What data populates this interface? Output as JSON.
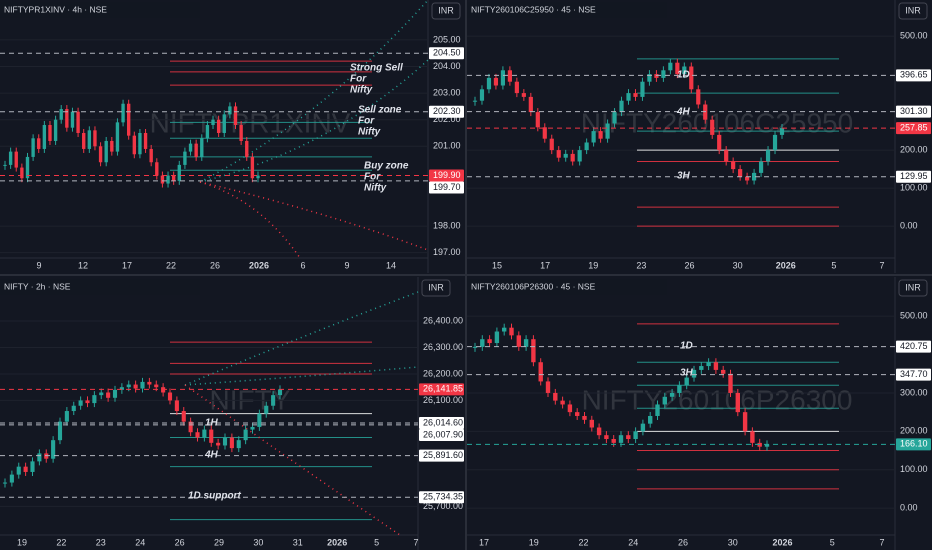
{
  "chart_data": [
    {
      "type": "candlestick",
      "title": "NIFTYPR1XINV · 4h · NSE",
      "currency": "INR",
      "watermark": "NIFTYPR1XINV",
      "ylim": [
        196.8,
        206.5
      ],
      "yticks": [
        {
          "value": 205,
          "label": "205.00"
        },
        {
          "value": 204,
          "label": "204.00"
        },
        {
          "value": 203,
          "label": "203.00"
        },
        {
          "value": 202,
          "label": "202.00"
        },
        {
          "value": 201,
          "label": "201.00"
        },
        {
          "value": 198,
          "label": "198.00"
        },
        {
          "value": 197,
          "label": "197.00"
        }
      ],
      "xticks": [
        "9",
        "12",
        "17",
        "22",
        "26",
        "2026",
        "6",
        "9",
        "14"
      ],
      "closes": [
        200.3,
        200.8,
        200.2,
        199.8,
        200.6,
        201.3,
        200.9,
        201.8,
        201.2,
        202.0,
        202.4,
        201.7,
        202.3,
        201.5,
        200.9,
        201.6,
        201.0,
        200.4,
        201.2,
        200.8,
        201.9,
        202.6,
        201.4,
        200.7,
        201.5,
        200.9,
        200.4,
        199.9,
        199.6,
        199.9,
        199.7,
        200.3,
        200.8,
        201.1,
        200.6,
        201.3,
        201.8,
        202.0,
        201.5,
        202.2,
        202.5,
        201.8,
        201.2,
        200.6,
        199.8,
        199.9
      ],
      "levels": [
        {
          "value": 204.2,
          "color": "#f23645"
        },
        {
          "value": 203.8,
          "color": "#f23645"
        },
        {
          "value": 203.3,
          "color": "#f23645"
        },
        {
          "value": 201.9,
          "color": "#26a69a"
        },
        {
          "value": 201.3,
          "color": "#26a69a"
        },
        {
          "value": 200.6,
          "color": "#26a69a"
        },
        {
          "value": 200.1,
          "color": "#26a69a"
        }
      ],
      "price_tags": [
        {
          "value": 204.5,
          "label": "204.50",
          "style": "white"
        },
        {
          "value": 202.3,
          "label": "202.30",
          "style": "white"
        },
        {
          "value": 199.9,
          "label": "199.90",
          "style": "red"
        },
        {
          "value": 199.7,
          "label": "199.70",
          "style": "white"
        }
      ],
      "annotations": [
        [
          "Strong Sell",
          "For",
          "Nifty"
        ],
        [
          "Sell zone",
          "For",
          "Nifty"
        ],
        [
          "Buy zone",
          "For",
          "Nifty"
        ]
      ]
    },
    {
      "type": "candlestick",
      "title": "NIFTY260106C25950 · 45 · NSE",
      "currency": "INR",
      "watermark": "NIFTY260106C25950",
      "ylim": [
        -84,
        595
      ],
      "yticks": [
        {
          "value": 500,
          "label": "500.00"
        },
        {
          "value": 200,
          "label": "200.00"
        },
        {
          "value": 100,
          "label": "100.00"
        },
        {
          "value": 0,
          "label": "0.00"
        }
      ],
      "xticks": [
        "15",
        "17",
        "19",
        "23",
        "26",
        "30",
        "2026",
        "5",
        "7"
      ],
      "closes": [
        330,
        360,
        390,
        370,
        410,
        380,
        350,
        340,
        300,
        260,
        230,
        200,
        180,
        190,
        170,
        200,
        220,
        250,
        230,
        270,
        300,
        330,
        350,
        340,
        380,
        400,
        390,
        410,
        430,
        400,
        420,
        360,
        320,
        280,
        240,
        200,
        170,
        150,
        130,
        120,
        140,
        170,
        200,
        240,
        258
      ],
      "levels": [
        {
          "value": 440,
          "color": "#26a69a"
        },
        {
          "value": 350,
          "color": "#26a69a"
        },
        {
          "value": 250,
          "color": "#26a69a"
        },
        {
          "value": 200,
          "color": "#ffffff"
        },
        {
          "value": 170,
          "color": "#f23645"
        },
        {
          "value": 50,
          "color": "#f23645"
        },
        {
          "value": 0,
          "color": "#f23645"
        }
      ],
      "price_tags": [
        {
          "value": 396.65,
          "label": "396.65",
          "style": "white"
        },
        {
          "value": 301.3,
          "label": "301.30",
          "style": "white"
        },
        {
          "value": 257.85,
          "label": "257.85",
          "style": "red"
        },
        {
          "value": 129.95,
          "label": "129.95",
          "style": "white"
        }
      ],
      "annotations": [
        [
          "1D"
        ],
        [
          "4H"
        ],
        [
          "3H"
        ]
      ]
    },
    {
      "type": "candlestick",
      "title": "NIFTY · 2h · NSE",
      "currency": "INR",
      "watermark": "NIFTY",
      "ylim": [
        25592,
        26566
      ],
      "yticks": [
        {
          "value": 26400,
          "label": "26,400.00"
        },
        {
          "value": 26300,
          "label": "26,300.00"
        },
        {
          "value": 26200,
          "label": "26,200.00"
        },
        {
          "value": 26100,
          "label": "26,100.00"
        },
        {
          "value": 25700,
          "label": "25,700.00"
        }
      ],
      "xticks": [
        "19",
        "22",
        "23",
        "24",
        "26",
        "29",
        "30",
        "31",
        "2026",
        "5",
        "7"
      ],
      "closes": [
        25790,
        25820,
        25850,
        25830,
        25870,
        25900,
        25880,
        25950,
        26020,
        26060,
        26080,
        26100,
        26090,
        26120,
        26130,
        26110,
        26140,
        26150,
        26160,
        26145,
        26170,
        26160,
        26150,
        26130,
        26100,
        26060,
        26020,
        25980,
        25960,
        25990,
        25940,
        25930,
        25960,
        25920,
        25950,
        25990,
        26000,
        26050,
        26080,
        26120,
        26141.85
      ],
      "levels": [
        {
          "value": 26320,
          "color": "#f23645"
        },
        {
          "value": 26240,
          "color": "#f23645"
        },
        {
          "value": 26200,
          "color": "#f23645"
        },
        {
          "value": 26050,
          "color": "#ffffff"
        },
        {
          "value": 25960,
          "color": "#26a69a"
        },
        {
          "value": 25850,
          "color": "#26a69a"
        },
        {
          "value": 25650,
          "color": "#26a69a"
        }
      ],
      "price_tags": [
        {
          "value": 26141.85,
          "label": "26,141.85",
          "style": "red"
        },
        {
          "value": 26014.6,
          "label": "26,014.60",
          "style": "white"
        },
        {
          "value": 26007.9,
          "label": "26,007.90",
          "style": "white"
        },
        {
          "value": 25891.6,
          "label": "25,891.60",
          "style": "white"
        },
        {
          "value": 25734.35,
          "label": "25,734.35",
          "style": "white"
        }
      ],
      "annotations": [
        [
          "1H"
        ],
        [
          "4H"
        ],
        [
          "1D support"
        ]
      ]
    },
    {
      "type": "candlestick",
      "title": "NIFTY260106P26300 · 45 · NSE",
      "currency": "INR",
      "watermark": "NIFTY260106P26300",
      "ylim": [
        -70,
        602
      ],
      "yticks": [
        {
          "value": 500,
          "label": "500.00"
        },
        {
          "value": 300,
          "label": "300.00"
        },
        {
          "value": 200,
          "label": "200.00"
        },
        {
          "value": 100,
          "label": "100.00"
        },
        {
          "value": 0,
          "label": "0.00"
        }
      ],
      "xticks": [
        "17",
        "19",
        "22",
        "24",
        "26",
        "30",
        "2026",
        "5",
        "7"
      ],
      "closes": [
        420,
        440,
        430,
        460,
        470,
        450,
        420,
        440,
        380,
        330,
        300,
        280,
        270,
        250,
        240,
        230,
        210,
        190,
        180,
        170,
        190,
        180,
        200,
        220,
        240,
        270,
        290,
        300,
        320,
        340,
        360,
        370,
        380,
        360,
        350,
        300,
        250,
        200,
        170,
        160,
        166.1
      ],
      "levels": [
        {
          "value": 480,
          "color": "#f23645"
        },
        {
          "value": 380,
          "color": "#26a69a"
        },
        {
          "value": 320,
          "color": "#26a69a"
        },
        {
          "value": 260,
          "color": "#26a69a"
        },
        {
          "value": 200,
          "color": "#ffffff"
        },
        {
          "value": 150,
          "color": "#f23645"
        },
        {
          "value": 100,
          "color": "#f23645"
        },
        {
          "value": 50,
          "color": "#f23645"
        }
      ],
      "price_tags": [
        {
          "value": 420.75,
          "label": "420.75",
          "style": "white"
        },
        {
          "value": 347.7,
          "label": "347.70",
          "style": "white"
        },
        {
          "value": 166.1,
          "label": "166.10",
          "style": "green"
        }
      ],
      "annotations": [
        [
          "1D"
        ],
        [
          "3H"
        ]
      ]
    }
  ]
}
